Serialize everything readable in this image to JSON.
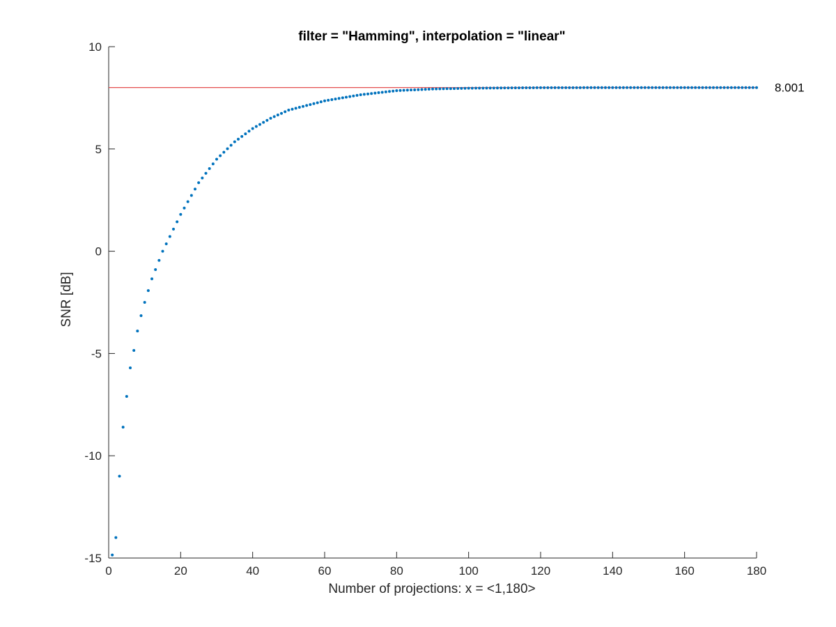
{
  "chart_data": {
    "type": "scatter",
    "title": "filter = \"Hamming\", interpolation = \"linear\"",
    "xlabel": "Number of projections: x = <1,180>",
    "ylabel": "SNR [dB]",
    "xlim": [
      0,
      180
    ],
    "ylim": [
      -15,
      10
    ],
    "xticks": [
      0,
      20,
      40,
      60,
      80,
      100,
      120,
      140,
      160,
      180
    ],
    "yticks": [
      -15,
      -10,
      -5,
      0,
      5,
      10
    ],
    "grid": false,
    "reference_line": {
      "y": 8.001,
      "label": "8.001",
      "color": "#e03a3a"
    },
    "series": [
      {
        "color": "#0072BD",
        "x_start": 1,
        "x_end": 180,
        "x_step": 1,
        "points": [
          [
            1,
            -14.85
          ],
          [
            2,
            -14.0
          ],
          [
            3,
            -11.0
          ],
          [
            4,
            -8.6
          ],
          [
            5,
            -7.1
          ],
          [
            6,
            -5.7
          ],
          [
            7,
            -4.85
          ],
          [
            8,
            -3.9
          ],
          [
            9,
            -3.15
          ],
          [
            10,
            -2.5
          ],
          [
            12,
            -1.35
          ],
          [
            15,
            0.0
          ],
          [
            20,
            1.8
          ],
          [
            25,
            3.35
          ],
          [
            30,
            4.5
          ],
          [
            35,
            5.35
          ],
          [
            40,
            6.0
          ],
          [
            45,
            6.5
          ],
          [
            50,
            6.9
          ],
          [
            60,
            7.35
          ],
          [
            70,
            7.65
          ],
          [
            80,
            7.85
          ],
          [
            90,
            7.93
          ],
          [
            100,
            7.97
          ],
          [
            120,
            7.995
          ],
          [
            150,
            8.0
          ],
          [
            180,
            8.001
          ]
        ]
      }
    ]
  }
}
